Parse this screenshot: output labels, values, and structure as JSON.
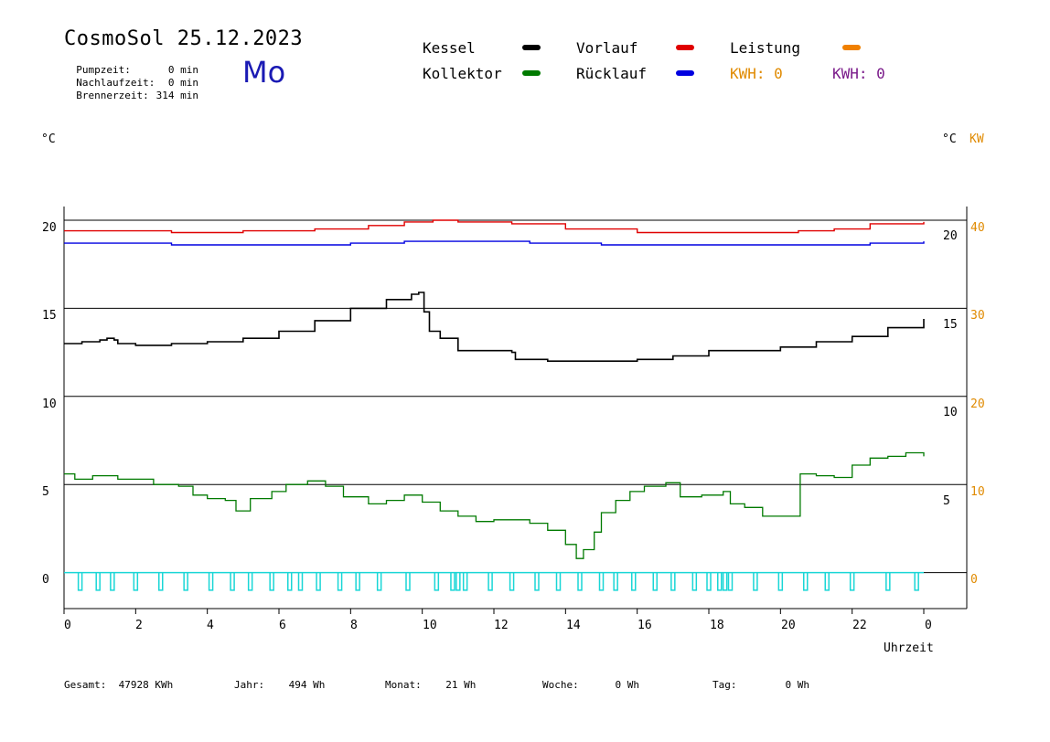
{
  "header": {
    "app_name": "CosmoSol",
    "date": "25.12.2023",
    "weekday": "Mo",
    "stats": [
      {
        "label": "Pumpzeit:",
        "value": "0 min"
      },
      {
        "label": "Nachlaufzeit:",
        "value": "0 min"
      },
      {
        "label": "Brennerzeit:",
        "value": "314 min"
      }
    ]
  },
  "legend": {
    "kessel": {
      "label": "Kessel",
      "color": "#000000"
    },
    "kollektor": {
      "label": "Kollektor",
      "color": "#007a00"
    },
    "vorlauf": {
      "label": "Vorlauf",
      "color": "#e00000"
    },
    "ruecklauf": {
      "label": "Rücklauf",
      "color": "#0000e0"
    },
    "leistung": {
      "label": "Leistung",
      "color": "#f08000"
    },
    "kwh1": {
      "label": "KWH: 0",
      "color": "#e08a00"
    },
    "kwh2": {
      "label": "KWH: 0",
      "color": "#7a1a8a"
    }
  },
  "axes": {
    "left_unit": "°C",
    "right_unit_c": "°C",
    "right_unit_kw": "KW",
    "left_ticks": [
      "20",
      "15",
      "10",
      "5",
      "0"
    ],
    "right_c_ticks": [
      "20",
      "15",
      "10",
      "5"
    ],
    "right_kw_ticks": [
      "40",
      "30",
      "20",
      "10",
      "0"
    ],
    "x_ticks": [
      "0",
      "2",
      "4",
      "6",
      "8",
      "10",
      "12",
      "14",
      "16",
      "18",
      "20",
      "22",
      "0"
    ],
    "x_label": "Uhrzeit"
  },
  "footer": {
    "gesamt": {
      "label": "Gesamt:",
      "value": "47928 KWh"
    },
    "jahr": {
      "label": "Jahr:",
      "value": "494 Wh"
    },
    "monat": {
      "label": "Monat:",
      "value": "21 Wh"
    },
    "woche": {
      "label": "Woche:",
      "value": "0 Wh"
    },
    "tag": {
      "label": "Tag:",
      "value": "0 Wh"
    }
  },
  "chart_data": {
    "type": "line",
    "xlabel": "Uhrzeit",
    "ylabel": "°C",
    "xlim": [
      0,
      24
    ],
    "ylim": [
      -1.5,
      21.5
    ],
    "y2lim_kw": [
      0,
      40
    ],
    "grid": "horizontal",
    "series": [
      {
        "name": "Vorlauf",
        "color": "#e00000",
        "points": [
          [
            0,
            19.4
          ],
          [
            1.5,
            19.4
          ],
          [
            3,
            19.3
          ],
          [
            5,
            19.4
          ],
          [
            7,
            19.5
          ],
          [
            8.5,
            19.7
          ],
          [
            9.5,
            19.9
          ],
          [
            10.3,
            20.0
          ],
          [
            11,
            19.9
          ],
          [
            12.5,
            19.8
          ],
          [
            14,
            19.5
          ],
          [
            16,
            19.3
          ],
          [
            17.5,
            19.3
          ],
          [
            19,
            19.3
          ],
          [
            20.5,
            19.4
          ],
          [
            21.5,
            19.5
          ],
          [
            22.5,
            19.8
          ],
          [
            24,
            19.9
          ]
        ]
      },
      {
        "name": "Rücklauf",
        "color": "#0000e0",
        "points": [
          [
            0,
            18.7
          ],
          [
            3,
            18.6
          ],
          [
            6,
            18.6
          ],
          [
            8,
            18.7
          ],
          [
            9.5,
            18.8
          ],
          [
            11,
            18.8
          ],
          [
            13,
            18.7
          ],
          [
            15,
            18.6
          ],
          [
            17,
            18.6
          ],
          [
            19,
            18.6
          ],
          [
            21,
            18.6
          ],
          [
            22.5,
            18.7
          ],
          [
            24,
            18.8
          ]
        ]
      },
      {
        "name": "Kessel",
        "color": "#000000",
        "points": [
          [
            0,
            13.0
          ],
          [
            0.5,
            13.1
          ],
          [
            1,
            13.2
          ],
          [
            1.2,
            13.3
          ],
          [
            1.4,
            13.2
          ],
          [
            1.5,
            13.0
          ],
          [
            2,
            12.9
          ],
          [
            3,
            13.0
          ],
          [
            4,
            13.1
          ],
          [
            5,
            13.3
          ],
          [
            6,
            13.7
          ],
          [
            7,
            14.3
          ],
          [
            8,
            15.0
          ],
          [
            9,
            15.5
          ],
          [
            9.7,
            15.8
          ],
          [
            9.9,
            15.9
          ],
          [
            10.05,
            14.8
          ],
          [
            10.2,
            13.7
          ],
          [
            10.5,
            13.3
          ],
          [
            10.9,
            13.3
          ],
          [
            11,
            12.6
          ],
          [
            12,
            12.6
          ],
          [
            12.5,
            12.5
          ],
          [
            12.6,
            12.1
          ],
          [
            13.5,
            12.0
          ],
          [
            14,
            12.0
          ],
          [
            15,
            12.0
          ],
          [
            16,
            12.1
          ],
          [
            17,
            12.3
          ],
          [
            18,
            12.6
          ],
          [
            19,
            12.6
          ],
          [
            20,
            12.8
          ],
          [
            21,
            13.1
          ],
          [
            22,
            13.4
          ],
          [
            23,
            13.9
          ],
          [
            24,
            14.4
          ]
        ]
      },
      {
        "name": "Kollektor",
        "color": "#007a00",
        "points": [
          [
            0,
            5.6
          ],
          [
            0.3,
            5.3
          ],
          [
            0.8,
            5.5
          ],
          [
            1.5,
            5.3
          ],
          [
            2.5,
            5.0
          ],
          [
            3.2,
            4.9
          ],
          [
            3.6,
            4.4
          ],
          [
            4,
            4.2
          ],
          [
            4.5,
            4.1
          ],
          [
            4.8,
            3.5
          ],
          [
            5.2,
            4.2
          ],
          [
            5.8,
            4.6
          ],
          [
            6.2,
            5.0
          ],
          [
            6.8,
            5.2
          ],
          [
            7.3,
            4.9
          ],
          [
            7.8,
            4.3
          ],
          [
            8.5,
            3.9
          ],
          [
            9,
            4.1
          ],
          [
            9.5,
            4.4
          ],
          [
            10,
            4.0
          ],
          [
            10.5,
            3.5
          ],
          [
            11,
            3.2
          ],
          [
            11.5,
            2.9
          ],
          [
            12,
            3.0
          ],
          [
            12.5,
            3.0
          ],
          [
            13,
            2.8
          ],
          [
            13.5,
            2.4
          ],
          [
            14,
            1.6
          ],
          [
            14.3,
            0.8
          ],
          [
            14.5,
            1.3
          ],
          [
            14.8,
            2.3
          ],
          [
            15,
            3.4
          ],
          [
            15.4,
            4.1
          ],
          [
            15.8,
            4.6
          ],
          [
            16.2,
            4.9
          ],
          [
            16.8,
            5.1
          ],
          [
            17.2,
            4.3
          ],
          [
            17.8,
            4.4
          ],
          [
            18.4,
            4.6
          ],
          [
            18.6,
            3.9
          ],
          [
            19,
            3.7
          ],
          [
            19.5,
            3.2
          ],
          [
            20.2,
            3.2
          ],
          [
            20.5,
            3.2
          ],
          [
            20.55,
            5.6
          ],
          [
            21,
            5.5
          ],
          [
            21.5,
            5.4
          ],
          [
            22,
            6.1
          ],
          [
            22.5,
            6.5
          ],
          [
            23,
            6.6
          ],
          [
            23.5,
            6.8
          ],
          [
            24,
            6.6
          ]
        ]
      }
    ],
    "pump_pulses": [
      0.45,
      0.95,
      1.35,
      2.0,
      2.7,
      3.4,
      4.1,
      4.7,
      5.2,
      5.8,
      6.3,
      6.6,
      7.1,
      7.7,
      8.2,
      8.8,
      9.6,
      10.4,
      10.85,
      11.0,
      11.2,
      11.9,
      12.5,
      13.2,
      13.8,
      14.4,
      15.0,
      15.4,
      15.9,
      16.5,
      17.0,
      17.6,
      18.0,
      18.3,
      18.45,
      18.6,
      19.3,
      20.0,
      20.7,
      21.3,
      22.0,
      23.0,
      23.8
    ],
    "pump_high": 0,
    "pump_low": -1.0
  }
}
